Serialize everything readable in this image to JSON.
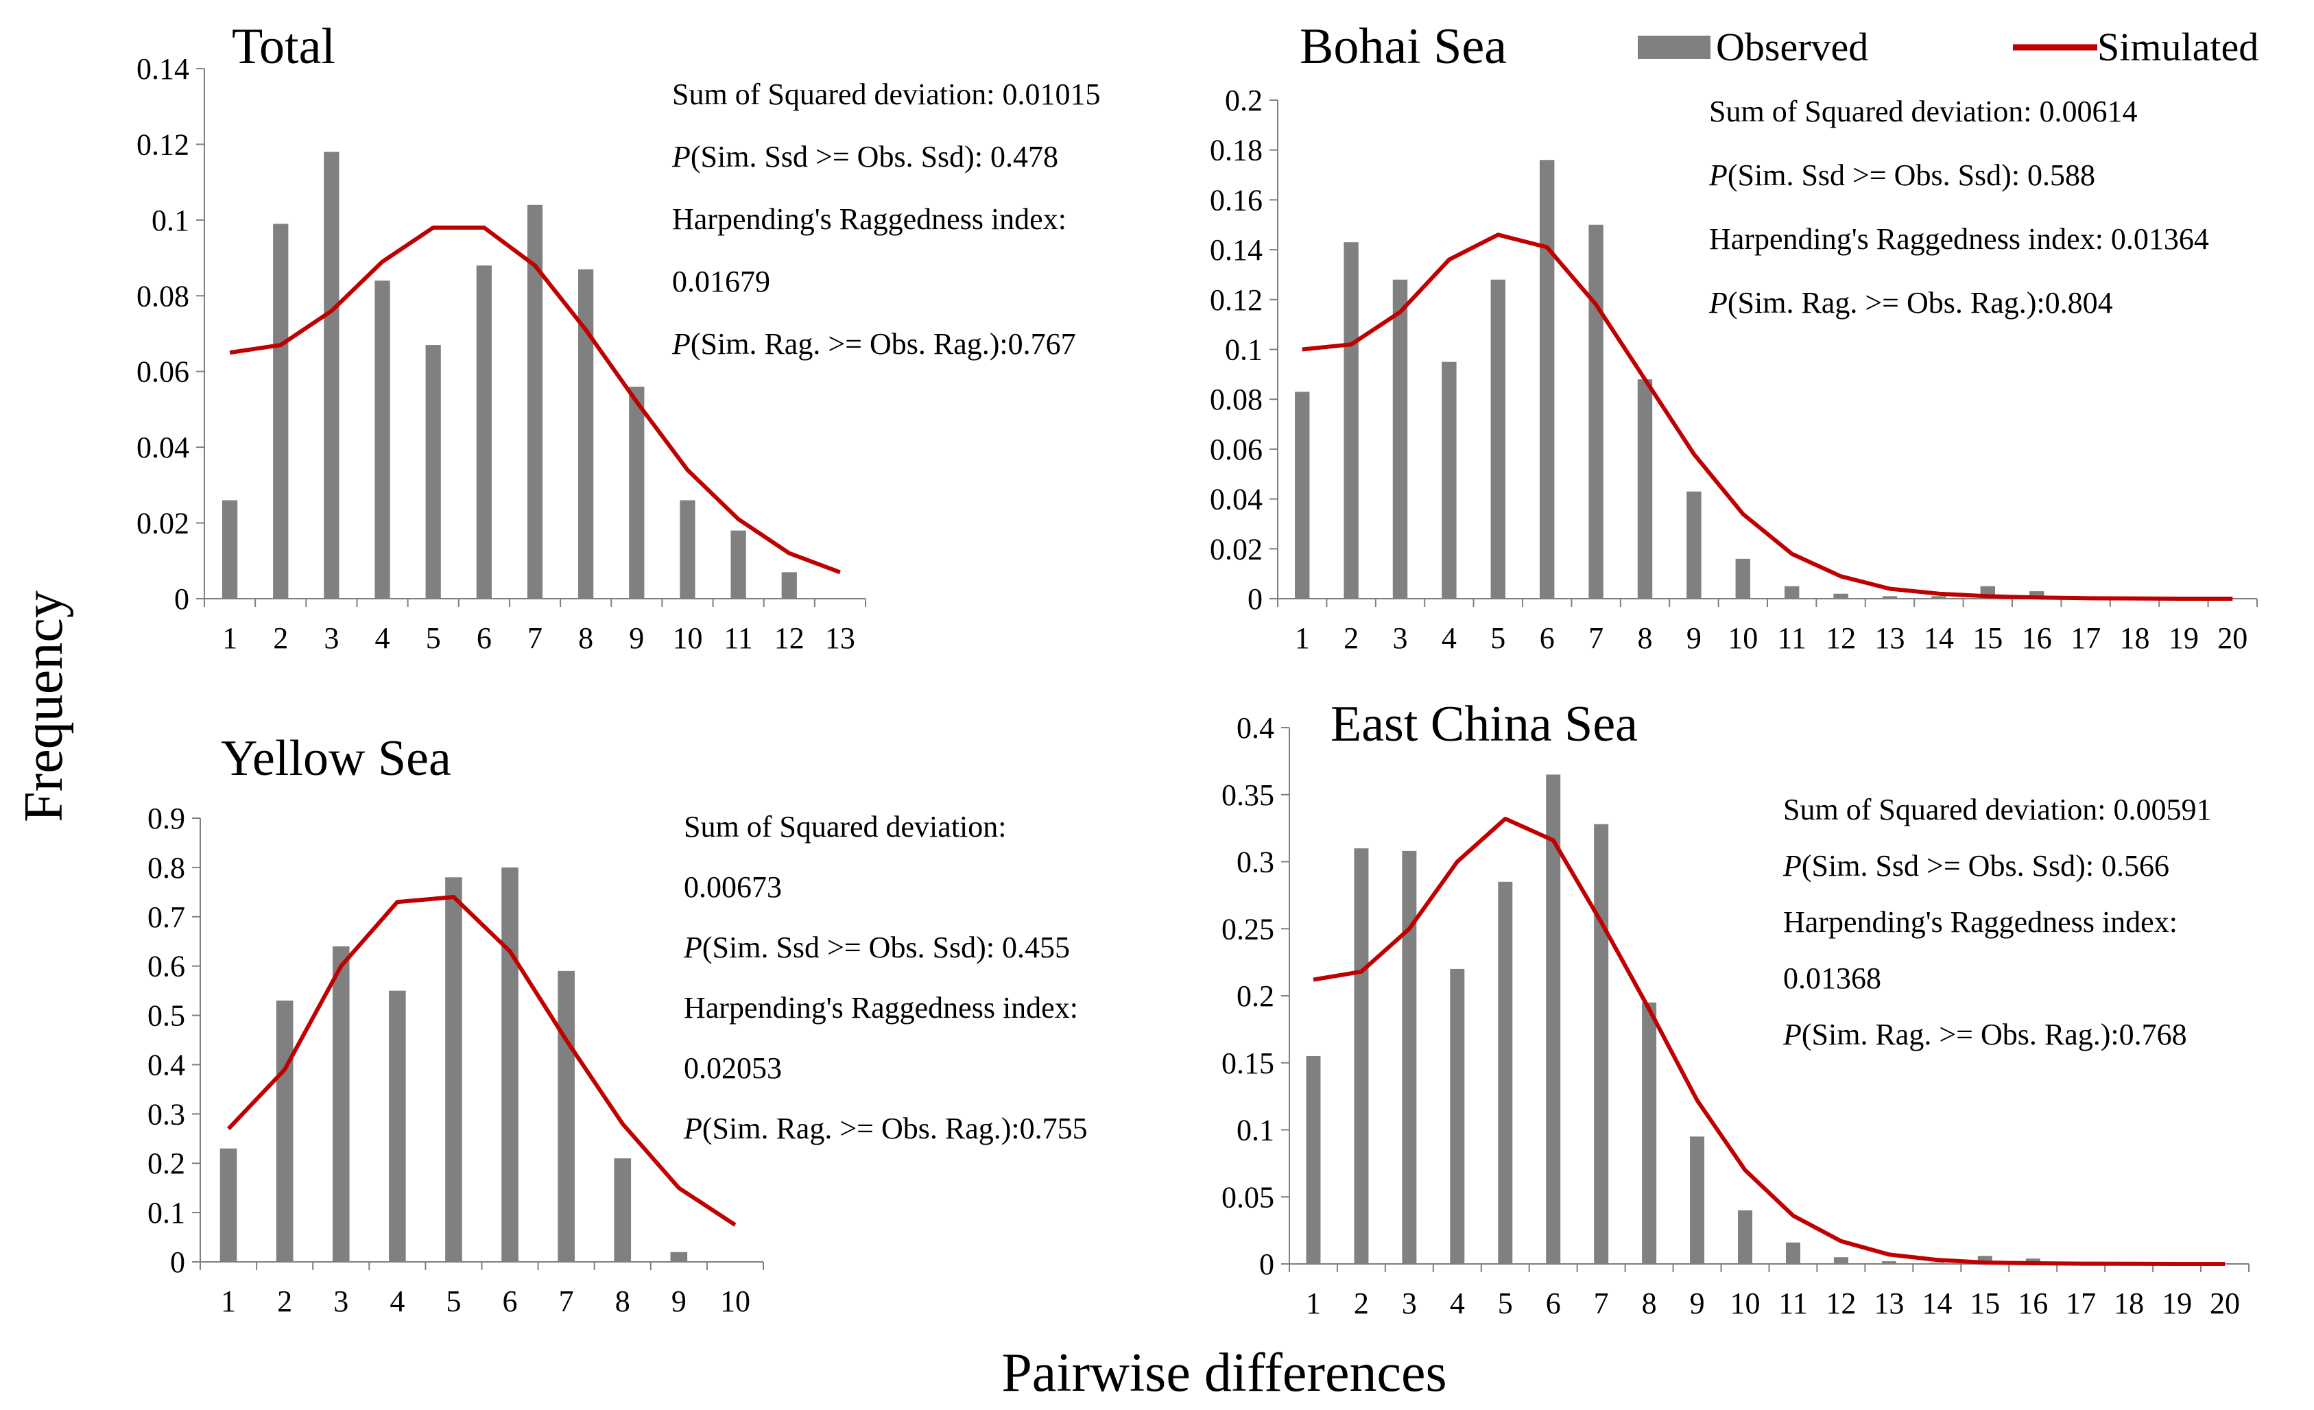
{
  "figure": {
    "xlabel": "Pairwise differences",
    "ylabel": "Frequency",
    "legend": {
      "observed": "Observed",
      "simulated": "Simulated",
      "observed_color": "#808080",
      "simulated_color": "#C00000"
    }
  },
  "chart_data": [
    {
      "type": "bar",
      "title": "Total",
      "categories": [
        "1",
        "2",
        "3",
        "4",
        "5",
        "6",
        "7",
        "8",
        "9",
        "10",
        "11",
        "12",
        "13"
      ],
      "series": [
        {
          "name": "Observed",
          "type": "bar",
          "values": [
            0.026,
            0.099,
            0.118,
            0.084,
            0.067,
            0.088,
            0.104,
            0.087,
            0.056,
            0.026,
            0.018,
            0.007,
            null
          ]
        },
        {
          "name": "Simulated",
          "type": "line",
          "values": [
            0.065,
            0.067,
            0.076,
            0.089,
            0.098,
            0.098,
            0.088,
            0.071,
            0.052,
            0.034,
            0.021,
            0.012,
            0.007
          ]
        }
      ],
      "ylim": [
        0,
        0.14
      ],
      "yticks": [
        "0",
        "0.02",
        "0.04",
        "0.06",
        "0.08",
        "0.1",
        "0.12",
        "0.14"
      ],
      "stats": [
        {
          "text": "Sum of Squared deviation: 0.01015"
        },
        {
          "italic": "P",
          "text": "(Sim. Ssd >= Obs. Ssd): 0.478"
        },
        {
          "text": "Harpending's Raggedness index:"
        },
        {
          "text": "0.01679"
        },
        {
          "italic": "P",
          "text": "(Sim. Rag. >= Obs. Rag.):0.767"
        }
      ]
    },
    {
      "type": "bar",
      "title": "Bohai Sea",
      "categories": [
        "1",
        "2",
        "3",
        "4",
        "5",
        "6",
        "7",
        "8",
        "9",
        "10",
        "11",
        "12",
        "13",
        "14",
        "15",
        "16",
        "17",
        "18",
        "19",
        "20"
      ],
      "series": [
        {
          "name": "Observed",
          "type": "bar",
          "values": [
            0.083,
            0.143,
            0.128,
            0.095,
            0.128,
            0.176,
            0.15,
            0.088,
            0.043,
            0.016,
            0.005,
            0.002,
            0.001,
            0.001,
            0.005,
            0.003,
            0,
            0,
            0,
            0
          ]
        },
        {
          "name": "Simulated",
          "type": "line",
          "values": [
            0.1,
            0.102,
            0.115,
            0.136,
            0.146,
            0.141,
            0.118,
            0.088,
            0.058,
            0.034,
            0.018,
            0.009,
            0.004,
            0.002,
            0.001,
            0.0005,
            0.0002,
            0.0001,
            0,
            0
          ]
        }
      ],
      "ylim": [
        0,
        0.2
      ],
      "yticks": [
        "0",
        "0.02",
        "0.04",
        "0.06",
        "0.08",
        "0.1",
        "0.12",
        "0.14",
        "0.16",
        "0.18",
        "0.2"
      ],
      "stats": [
        {
          "text": "Sum of Squared deviation: 0.00614"
        },
        {
          "italic": "P",
          "text": "(Sim. Ssd >= Obs. Ssd): 0.588"
        },
        {
          "text": "Harpending's Raggedness index: 0.01364"
        },
        {
          "italic": "P",
          "text": "(Sim. Rag. >= Obs. Rag.):0.804"
        }
      ]
    },
    {
      "type": "bar",
      "title": "Yellow Sea",
      "categories": [
        "1",
        "2",
        "3",
        "4",
        "5",
        "6",
        "7",
        "8",
        "9",
        "10"
      ],
      "series": [
        {
          "name": "Observed",
          "type": "bar",
          "values": [
            0.23,
            0.53,
            0.64,
            0.55,
            0.78,
            0.8,
            0.59,
            0.21,
            0.02,
            null
          ]
        },
        {
          "name": "Simulated",
          "type": "line",
          "values": [
            0.27,
            0.39,
            0.6,
            0.73,
            0.74,
            0.63,
            0.45,
            0.28,
            0.15,
            0.075
          ]
        }
      ],
      "ylim": [
        0,
        0.9
      ],
      "yticks": [
        "0",
        "0.1",
        "0.2",
        "0.3",
        "0.4",
        "0.5",
        "0.6",
        "0.7",
        "0.8",
        "0.9"
      ],
      "stats": [
        {
          "text": "Sum of Squared deviation:"
        },
        {
          "text": "0.00673"
        },
        {
          "italic": "P",
          "text": "(Sim. Ssd >= Obs. Ssd): 0.455"
        },
        {
          "text": "Harpending's Raggedness index:"
        },
        {
          "text": "0.02053"
        },
        {
          "italic": "P",
          "text": "(Sim. Rag. >= Obs. Rag.):0.755"
        }
      ]
    },
    {
      "type": "bar",
      "title": "East China Sea",
      "categories": [
        "1",
        "2",
        "3",
        "4",
        "5",
        "6",
        "7",
        "8",
        "9",
        "10",
        "11",
        "12",
        "13",
        "14",
        "15",
        "16",
        "17",
        "18",
        "19",
        "20"
      ],
      "series": [
        {
          "name": "Observed",
          "type": "bar",
          "values": [
            0.155,
            0.31,
            0.308,
            0.22,
            0.285,
            0.365,
            0.328,
            0.195,
            0.095,
            0.04,
            0.016,
            0.005,
            0.002,
            0.001,
            0.006,
            0.004,
            0,
            0,
            0,
            0
          ]
        },
        {
          "name": "Simulated",
          "type": "line",
          "values": [
            0.212,
            0.218,
            0.25,
            0.3,
            0.332,
            0.316,
            0.255,
            0.19,
            0.122,
            0.07,
            0.036,
            0.017,
            0.007,
            0.003,
            0.001,
            0.0005,
            0.0002,
            0.0001,
            0,
            0
          ]
        }
      ],
      "ylim": [
        0,
        0.4
      ],
      "yticks": [
        "0",
        "0.05",
        "0.1",
        "0.15",
        "0.2",
        "0.25",
        "0.3",
        "0.35",
        "0.4"
      ],
      "stats": [
        {
          "text": "Sum of Squared deviation: 0.00591"
        },
        {
          "italic": "P",
          "text": "(Sim. Ssd >= Obs. Ssd): 0.566"
        },
        {
          "text": "Harpending's Raggedness index:"
        },
        {
          "text": "0.01368"
        },
        {
          "italic": "P",
          "text": "(Sim. Rag. >= Obs. Rag.):0.768"
        }
      ]
    }
  ]
}
